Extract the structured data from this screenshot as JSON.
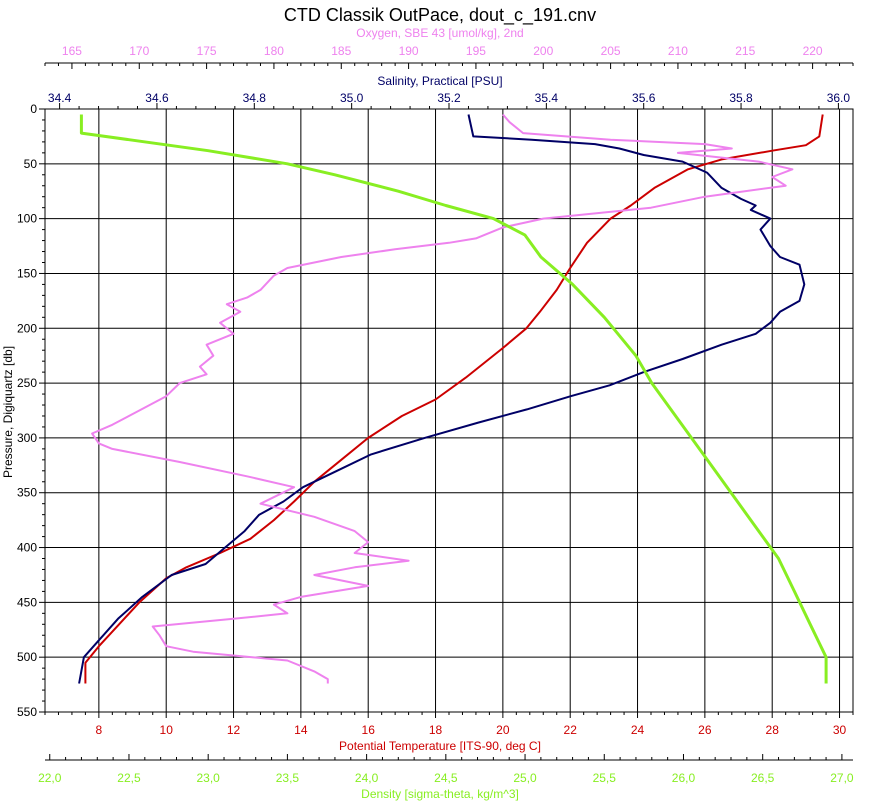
{
  "chart_data": {
    "type": "line",
    "title": "CTD Classik OutPace, dout_c_191.cnv",
    "grid": true,
    "legend": "none",
    "axes": {
      "pressure": {
        "label": "Pressure, Digiquartz [db]",
        "range": [
          0,
          550
        ],
        "reversed": true,
        "ticks": [
          "0",
          "50",
          "100",
          "150",
          "200",
          "250",
          "300",
          "350",
          "400",
          "450",
          "500",
          "550"
        ],
        "color": "#000000"
      },
      "oxygen": {
        "label": "Oxygen, SBE 43 [umol/kg], 2nd",
        "range": [
          163,
          223
        ],
        "ticks": [
          "165",
          "170",
          "175",
          "180",
          "185",
          "190",
          "195",
          "200",
          "205",
          "210",
          "215",
          "220"
        ],
        "color": "#ee82ee"
      },
      "salinity": {
        "label": "Salinity, Practical [PSU]",
        "range": [
          34.37,
          36.03
        ],
        "ticks": [
          "34.4",
          "34.6",
          "34.8",
          "35.0",
          "35.2",
          "35.4",
          "35.6",
          "35.8",
          "36.0"
        ],
        "color": "#000066"
      },
      "temperature": {
        "label": "Potential Temperature [ITS-90, deg C]",
        "range": [
          6.4,
          30.4
        ],
        "ticks": [
          "8",
          "10",
          "12",
          "14",
          "16",
          "18",
          "20",
          "22",
          "24",
          "26",
          "28",
          "30"
        ],
        "color": "#cc0000"
      },
      "density": {
        "label": "Density [sigma-theta, kg/m^3]",
        "range": [
          21.97,
          27.07
        ],
        "ticks": [
          "22,0",
          "22,5",
          "23,0",
          "23,5",
          "24,0",
          "24,5",
          "25,0",
          "25,5",
          "26,0",
          "26,5",
          "27,0"
        ],
        "color": "#88ee22"
      }
    },
    "series": [
      {
        "axis": "temperature",
        "color": "#cc0000",
        "points": [
          [
            29.5,
            5
          ],
          [
            29.4,
            25
          ],
          [
            29.0,
            33
          ],
          [
            28.0,
            38
          ],
          [
            26.5,
            46
          ],
          [
            25.5,
            55
          ],
          [
            24.5,
            72
          ],
          [
            23.8,
            88
          ],
          [
            23.2,
            100
          ],
          [
            22.5,
            122
          ],
          [
            22.0,
            145
          ],
          [
            21.6,
            165
          ],
          [
            21.1,
            185
          ],
          [
            20.7,
            200
          ],
          [
            20.0,
            218
          ],
          [
            18.9,
            245
          ],
          [
            18.0,
            265
          ],
          [
            17.0,
            280
          ],
          [
            16.0,
            300
          ],
          [
            15.2,
            320
          ],
          [
            14.4,
            340
          ],
          [
            13.8,
            358
          ],
          [
            13.2,
            375
          ],
          [
            12.5,
            392
          ],
          [
            11.6,
            405
          ],
          [
            10.6,
            418
          ],
          [
            10.0,
            428
          ],
          [
            9.2,
            450
          ],
          [
            8.6,
            470
          ],
          [
            8.0,
            490
          ],
          [
            7.6,
            505
          ],
          [
            7.6,
            524
          ]
        ]
      },
      {
        "axis": "salinity",
        "color": "#000066",
        "points": [
          [
            35.24,
            5
          ],
          [
            35.25,
            25
          ],
          [
            35.37,
            28
          ],
          [
            35.5,
            32
          ],
          [
            35.55,
            36
          ],
          [
            35.6,
            42
          ],
          [
            35.68,
            48
          ],
          [
            35.73,
            58
          ],
          [
            35.76,
            72
          ],
          [
            35.8,
            82
          ],
          [
            35.83,
            88
          ],
          [
            35.82,
            92
          ],
          [
            35.86,
            100
          ],
          [
            35.84,
            110
          ],
          [
            35.86,
            125
          ],
          [
            35.88,
            135
          ],
          [
            35.92,
            142
          ],
          [
            35.93,
            160
          ],
          [
            35.92,
            175
          ],
          [
            35.88,
            185
          ],
          [
            35.86,
            195
          ],
          [
            35.83,
            205
          ],
          [
            35.76,
            215
          ],
          [
            35.68,
            228
          ],
          [
            35.6,
            240
          ],
          [
            35.53,
            252
          ],
          [
            35.45,
            262
          ],
          [
            35.36,
            274
          ],
          [
            35.26,
            286
          ],
          [
            35.15,
            300
          ],
          [
            35.04,
            315
          ],
          [
            34.97,
            330
          ],
          [
            34.9,
            345
          ],
          [
            34.86,
            358
          ],
          [
            34.81,
            370
          ],
          [
            34.78,
            385
          ],
          [
            34.74,
            400
          ],
          [
            34.7,
            415
          ],
          [
            34.63,
            425
          ],
          [
            34.57,
            445
          ],
          [
            34.52,
            465
          ],
          [
            34.48,
            485
          ],
          [
            34.45,
            500
          ],
          [
            34.44,
            524
          ]
        ]
      },
      {
        "axis": "oxygen",
        "color": "#ee82ee",
        "points": [
          [
            197,
            5
          ],
          [
            197.5,
            12
          ],
          [
            198.5,
            22
          ],
          [
            205,
            28
          ],
          [
            212,
            32
          ],
          [
            214,
            36
          ],
          [
            210,
            40
          ],
          [
            216,
            48
          ],
          [
            218.5,
            55
          ],
          [
            217,
            62
          ],
          [
            218,
            70
          ],
          [
            212,
            80
          ],
          [
            208,
            90
          ],
          [
            200,
            100
          ],
          [
            197,
            108
          ],
          [
            195,
            118
          ],
          [
            193,
            122
          ],
          [
            189,
            128
          ],
          [
            185,
            135
          ],
          [
            183,
            140
          ],
          [
            181,
            145
          ],
          [
            180,
            152
          ],
          [
            179,
            165
          ],
          [
            178,
            172
          ],
          [
            176.5,
            178
          ],
          [
            177.5,
            185
          ],
          [
            176,
            195
          ],
          [
            177,
            205
          ],
          [
            175,
            215
          ],
          [
            175.5,
            225
          ],
          [
            174.5,
            235
          ],
          [
            175,
            242
          ],
          [
            173,
            250
          ],
          [
            172,
            262
          ],
          [
            170,
            275
          ],
          [
            168,
            288
          ],
          [
            166.5,
            296
          ],
          [
            167,
            305
          ],
          [
            168,
            310
          ],
          [
            173,
            322
          ],
          [
            178,
            335
          ],
          [
            181.5,
            345
          ],
          [
            179,
            360
          ],
          [
            183,
            372
          ],
          [
            186,
            385
          ],
          [
            187,
            395
          ],
          [
            186,
            405
          ],
          [
            190,
            412
          ],
          [
            186,
            418
          ],
          [
            183,
            425
          ],
          [
            187,
            435
          ],
          [
            182,
            445
          ],
          [
            180,
            452
          ],
          [
            181,
            460
          ],
          [
            177,
            465
          ],
          [
            171,
            472
          ],
          [
            171.5,
            480
          ],
          [
            172,
            490
          ],
          [
            174,
            495
          ],
          [
            181,
            503
          ],
          [
            183,
            513
          ],
          [
            184,
            520
          ],
          [
            184,
            524
          ]
        ]
      },
      {
        "axis": "density",
        "color": "#88ee22",
        "points": [
          [
            22.2,
            5
          ],
          [
            22.2,
            22
          ],
          [
            22.5,
            28
          ],
          [
            23.0,
            38
          ],
          [
            23.5,
            50
          ],
          [
            23.8,
            60
          ],
          [
            24.2,
            75
          ],
          [
            24.5,
            88
          ],
          [
            24.8,
            100
          ],
          [
            25.0,
            115
          ],
          [
            25.1,
            135
          ],
          [
            25.3,
            160
          ],
          [
            25.5,
            190
          ],
          [
            25.7,
            225
          ],
          [
            25.8,
            250
          ],
          [
            26.0,
            290
          ],
          [
            26.2,
            330
          ],
          [
            26.4,
            370
          ],
          [
            26.6,
            410
          ],
          [
            26.7,
            440
          ],
          [
            26.8,
            470
          ],
          [
            26.9,
            500
          ],
          [
            26.9,
            524
          ]
        ]
      }
    ]
  }
}
